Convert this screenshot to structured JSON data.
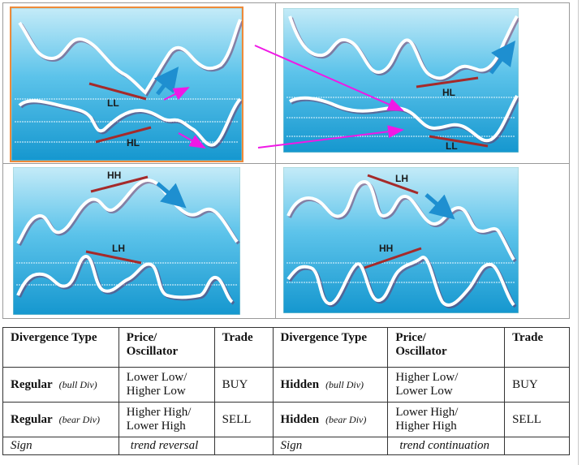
{
  "panels": {
    "regular_bull": {
      "price_label": "LL",
      "osc_label": "HL"
    },
    "hidden_bull": {
      "price_label": "HL",
      "osc_label": "LL"
    },
    "regular_bear": {
      "price_label": "HH",
      "osc_label": "LH"
    },
    "hidden_bear": {
      "price_label": "LH",
      "osc_label": "HH"
    }
  },
  "colors": {
    "panel_top": "#bfe8f6",
    "panel_bottom": "#1b9fd3",
    "divergence_line": "#a52a2a",
    "trend_arrow": "#1e8fd0",
    "magenta_arrow": "#f018e6",
    "selection_border": "#ee8a3a"
  },
  "table": {
    "headers": [
      "Divergence Type",
      "Price/ Oscillator",
      "Trade",
      "Divergence Type",
      "Price/ Oscillator",
      "Trade"
    ],
    "header_price_line1": "Price/",
    "header_price_line2": "Oscillator",
    "rows": [
      {
        "type_left": "Regular",
        "sub_left": "(bull Div)",
        "po_left_1": "Lower Low/",
        "po_left_2": "Higher Low",
        "trade_left": "BUY",
        "type_right": "Hidden",
        "sub_right": "(bull Div)",
        "po_right_1": "Higher Low/",
        "po_right_2": "Lower Low",
        "trade_right": "BUY"
      },
      {
        "type_left": "Regular",
        "sub_left": "(bear Div)",
        "po_left_1": "Higher High/",
        "po_left_2": "Lower High",
        "trade_left": "SELL",
        "type_right": "Hidden",
        "sub_right": "(bear Div)",
        "po_right_1": "Lower High/",
        "po_right_2": "Higher High",
        "trade_right": "SELL"
      }
    ],
    "sign_row": {
      "label_left": "Sign",
      "value_left": "trend reversal",
      "label_right": "Sign",
      "value_right": "trend continuation"
    }
  }
}
